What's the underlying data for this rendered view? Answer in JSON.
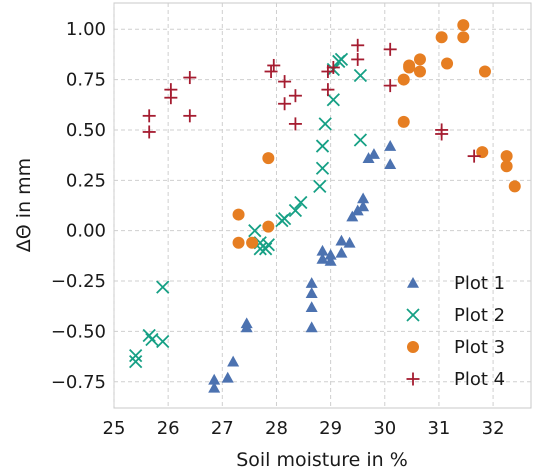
{
  "chart_data": {
    "type": "scatter",
    "xlabel": "Soil moisture in %",
    "ylabel": "ΔΘ in mm",
    "xlim": [
      25,
      32.7
    ],
    "ylim": [
      -0.88,
      1.13
    ],
    "xticks": [
      25,
      26,
      27,
      28,
      29,
      30,
      31,
      32
    ],
    "yticks": [
      1.0,
      0.75,
      0.5,
      0.25,
      0.0,
      -0.25,
      -0.5,
      -0.75
    ],
    "ytick_labels": [
      "1.00",
      "0.75",
      "0.50",
      "0.25",
      "0.00",
      "−0.25",
      "−0.50",
      "−0.75"
    ],
    "grid": true,
    "legend_position": "lower-right",
    "series": [
      {
        "name": "Plot 1",
        "marker": "triangle",
        "color": "#4C72B0",
        "points": [
          [
            26.85,
            -0.74
          ],
          [
            26.85,
            -0.78
          ],
          [
            27.1,
            -0.73
          ],
          [
            27.2,
            -0.65
          ],
          [
            27.45,
            -0.46
          ],
          [
            27.45,
            -0.48
          ],
          [
            28.65,
            -0.26
          ],
          [
            28.65,
            -0.31
          ],
          [
            28.65,
            -0.38
          ],
          [
            28.65,
            -0.48
          ],
          [
            28.85,
            -0.1
          ],
          [
            28.85,
            -0.14
          ],
          [
            29.0,
            -0.12
          ],
          [
            29.0,
            -0.15
          ],
          [
            29.2,
            -0.05
          ],
          [
            29.2,
            -0.11
          ],
          [
            29.35,
            -0.06
          ],
          [
            29.4,
            0.07
          ],
          [
            29.5,
            0.1
          ],
          [
            29.6,
            0.16
          ],
          [
            29.6,
            0.12
          ],
          [
            29.7,
            0.36
          ],
          [
            29.8,
            0.38
          ],
          [
            30.1,
            0.42
          ],
          [
            30.1,
            0.33
          ]
        ]
      },
      {
        "name": "Plot 2",
        "marker": "x",
        "color": "#16A085",
        "points": [
          [
            25.4,
            -0.62
          ],
          [
            25.4,
            -0.65
          ],
          [
            25.65,
            -0.52
          ],
          [
            25.7,
            -0.54
          ],
          [
            25.9,
            -0.28
          ],
          [
            25.9,
            -0.55
          ],
          [
            27.7,
            -0.06
          ],
          [
            27.7,
            -0.09
          ],
          [
            27.8,
            -0.09
          ],
          [
            27.85,
            -0.07
          ],
          [
            27.6,
            0.0
          ],
          [
            28.1,
            0.05
          ],
          [
            28.15,
            0.06
          ],
          [
            28.35,
            0.1
          ],
          [
            28.45,
            0.14
          ],
          [
            28.8,
            0.22
          ],
          [
            28.85,
            0.31
          ],
          [
            28.85,
            0.42
          ],
          [
            28.9,
            0.53
          ],
          [
            29.05,
            0.65
          ],
          [
            29.05,
            0.8
          ],
          [
            29.15,
            0.84
          ],
          [
            29.2,
            0.85
          ],
          [
            29.55,
            0.77
          ],
          [
            29.55,
            0.45
          ]
        ]
      },
      {
        "name": "Plot 3",
        "marker": "circle",
        "color": "#E67E22",
        "points": [
          [
            27.3,
            -0.06
          ],
          [
            27.55,
            -0.06
          ],
          [
            27.3,
            0.08
          ],
          [
            27.85,
            0.02
          ],
          [
            27.85,
            0.36
          ],
          [
            30.35,
            0.54
          ],
          [
            30.35,
            0.75
          ],
          [
            30.45,
            0.81
          ],
          [
            30.45,
            0.82
          ],
          [
            30.65,
            0.79
          ],
          [
            30.65,
            0.85
          ],
          [
            31.05,
            0.96
          ],
          [
            31.15,
            0.83
          ],
          [
            31.45,
            1.02
          ],
          [
            31.45,
            0.96
          ],
          [
            31.85,
            0.79
          ],
          [
            31.8,
            0.39
          ],
          [
            32.25,
            0.37
          ],
          [
            32.25,
            0.32
          ],
          [
            32.4,
            0.22
          ]
        ]
      },
      {
        "name": "Plot 4",
        "marker": "plus",
        "color": "#A51C30",
        "points": [
          [
            25.65,
            0.57
          ],
          [
            25.65,
            0.49
          ],
          [
            26.05,
            0.66
          ],
          [
            26.05,
            0.7
          ],
          [
            26.4,
            0.76
          ],
          [
            26.4,
            0.57
          ],
          [
            27.9,
            0.79
          ],
          [
            27.95,
            0.82
          ],
          [
            28.15,
            0.74
          ],
          [
            28.15,
            0.63
          ],
          [
            28.35,
            0.67
          ],
          [
            28.35,
            0.53
          ],
          [
            28.95,
            0.7
          ],
          [
            28.95,
            0.79
          ],
          [
            29.05,
            0.81
          ],
          [
            29.5,
            0.92
          ],
          [
            29.5,
            0.85
          ],
          [
            30.1,
            0.9
          ],
          [
            30.1,
            0.72
          ],
          [
            31.05,
            0.5
          ],
          [
            31.05,
            0.48
          ],
          [
            31.65,
            0.37
          ]
        ]
      }
    ]
  }
}
